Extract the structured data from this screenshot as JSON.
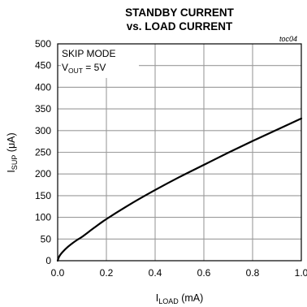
{
  "chart_data": {
    "type": "line",
    "title": [
      "STANDBY CURRENT",
      "vs. LOAD CURRENT"
    ],
    "figure_tag": "toc04",
    "annotation": {
      "line1": "SKIP MODE",
      "line2_main": "V",
      "line2_sub": "OUT",
      "line2_rest": " = 5V"
    },
    "xlabel": {
      "main": "I",
      "sub": "LOAD",
      "rest": " (mA)"
    },
    "ylabel": {
      "main": "I",
      "sub": "SUP",
      "rest": " (μA)"
    },
    "xlim": [
      0,
      1
    ],
    "ylim": [
      0,
      500
    ],
    "xticks": [
      "0.0",
      "0.2",
      "0.4",
      "0.6",
      "0.8",
      "1.0"
    ],
    "yticks": [
      "0",
      "50",
      "100",
      "150",
      "200",
      "250",
      "300",
      "350",
      "400",
      "450",
      "500"
    ],
    "grid": true,
    "series": [
      {
        "x": [
          0,
          0.005,
          0.01,
          0.02,
          0.04,
          0.06,
          0.08,
          0.1,
          0.15,
          0.2,
          0.3,
          0.4,
          0.5,
          0.6,
          0.7,
          0.8,
          0.9,
          1.0
        ],
        "values": [
          0,
          8,
          13,
          20,
          31,
          40,
          48,
          55,
          76,
          96,
          131,
          163,
          193,
          221,
          249,
          276,
          302,
          328
        ]
      }
    ]
  }
}
